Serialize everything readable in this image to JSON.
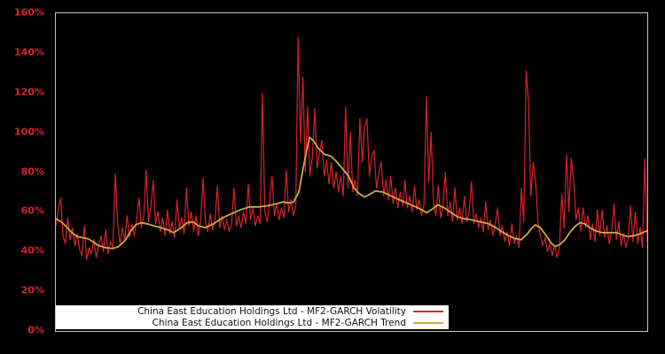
{
  "page": {
    "background": "#000000",
    "plot_border_color": "#c6c6c6"
  },
  "chart_data": {
    "type": "line",
    "title": "",
    "xlabel": "",
    "ylabel": "",
    "ylim": [
      0,
      160
    ],
    "grid": false,
    "legend_position": "bottom-left",
    "x_axis_labels_visible": false,
    "y_ticks": {
      "values": [
        0,
        20,
        40,
        60,
        80,
        100,
        120,
        140,
        160
      ],
      "labels": [
        "0%",
        "20%",
        "40%",
        "60%",
        "80%",
        "100%",
        "120%",
        "140%",
        "160%"
      ]
    },
    "colors": {
      "volatility": "#d8222a",
      "trend": "#ccaa3c",
      "axis_label": "#d8222a",
      "legend_bg": "#ffffff",
      "legend_text": "#111111"
    },
    "series": [
      {
        "name": "China East Education Holdings Ltd - MF2-GARCH Volatility",
        "color_key": "volatility",
        "unit": "%",
        "x_mode": "uniform",
        "values": [
          53,
          61,
          67,
          48,
          44,
          57,
          46,
          52,
          43,
          49,
          41,
          38,
          53,
          36,
          42,
          39,
          46,
          37,
          43,
          48,
          40,
          51,
          39,
          45,
          42,
          79,
          55,
          44,
          52,
          46,
          58,
          47,
          54,
          48,
          56,
          67,
          52,
          58,
          81,
          55,
          62,
          76,
          54,
          60,
          50,
          57,
          48,
          61,
          49,
          55,
          47,
          66,
          52,
          57,
          49,
          72,
          53,
          60,
          50,
          58,
          48,
          56,
          77,
          55,
          50,
          59,
          51,
          56,
          73,
          52,
          58,
          51,
          56,
          50,
          54,
          72,
          53,
          58,
          52,
          60,
          54,
          74,
          56,
          62,
          53,
          58,
          54,
          120,
          60,
          55,
          65,
          78,
          58,
          64,
          56,
          62,
          57,
          81,
          60,
          66,
          58,
          63,
          148,
          95,
          128,
          80,
          113,
          78,
          88,
          112,
          82,
          90,
          96,
          78,
          86,
          74,
          85,
          72,
          80,
          70,
          78,
          68,
          113,
          72,
          100,
          70,
          76,
          68,
          107,
          85,
          103,
          107,
          78,
          88,
          91,
          72,
          80,
          85,
          68,
          76,
          66,
          78,
          64,
          72,
          62,
          70,
          63,
          76,
          62,
          68,
          60,
          73,
          61,
          66,
          58,
          64,
          118,
          75,
          100,
          65,
          58,
          73,
          57,
          63,
          80,
          58,
          65,
          55,
          72,
          56,
          62,
          54,
          68,
          55,
          60,
          75,
          54,
          59,
          52,
          57,
          50,
          65,
          51,
          56,
          48,
          54,
          62,
          48,
          53,
          45,
          50,
          43,
          54,
          44,
          48,
          42,
          72,
          55,
          131,
          115,
          68,
          85,
          75,
          55,
          48,
          43,
          47,
          40,
          44,
          38,
          43,
          37,
          42,
          69,
          52,
          89,
          60,
          87,
          76,
          56,
          62,
          50,
          62,
          52,
          58,
          46,
          54,
          45,
          61,
          48,
          61,
          47,
          53,
          44,
          50,
          64,
          46,
          55,
          43,
          49,
          42,
          47,
          63,
          45,
          60,
          44,
          52,
          42,
          87,
          45
        ]
      },
      {
        "name": "China East Education Holdings Ltd - MF2-GARCH Trend",
        "color_key": "trend",
        "unit": "%",
        "x_mode": "pairs",
        "points": [
          [
            0.0,
            56.5
          ],
          [
            0.009,
            55
          ],
          [
            0.018,
            52.5
          ],
          [
            0.027,
            49.5
          ],
          [
            0.036,
            47.5
          ],
          [
            0.045,
            47
          ],
          [
            0.054,
            46.5
          ],
          [
            0.063,
            45
          ],
          [
            0.072,
            43
          ],
          [
            0.084,
            42
          ],
          [
            0.096,
            41.5
          ],
          [
            0.106,
            42.5
          ],
          [
            0.117,
            45.5
          ],
          [
            0.126,
            50
          ],
          [
            0.135,
            53.5
          ],
          [
            0.144,
            54.5
          ],
          [
            0.154,
            54
          ],
          [
            0.165,
            53
          ],
          [
            0.177,
            52
          ],
          [
            0.189,
            51
          ],
          [
            0.199,
            49.5
          ],
          [
            0.21,
            51.5
          ],
          [
            0.222,
            54.5
          ],
          [
            0.232,
            55
          ],
          [
            0.241,
            53
          ],
          [
            0.252,
            52
          ],
          [
            0.267,
            54
          ],
          [
            0.282,
            57
          ],
          [
            0.297,
            59
          ],
          [
            0.312,
            61
          ],
          [
            0.327,
            62.5
          ],
          [
            0.342,
            62.5
          ],
          [
            0.357,
            63
          ],
          [
            0.372,
            64
          ],
          [
            0.384,
            65
          ],
          [
            0.394,
            64.5
          ],
          [
            0.402,
            65
          ],
          [
            0.411,
            70
          ],
          [
            0.42,
            85
          ],
          [
            0.429,
            97.5
          ],
          [
            0.435,
            96
          ],
          [
            0.444,
            92
          ],
          [
            0.454,
            89
          ],
          [
            0.465,
            88
          ],
          [
            0.474,
            85.5
          ],
          [
            0.484,
            82
          ],
          [
            0.495,
            78
          ],
          [
            0.504,
            72
          ],
          [
            0.514,
            69
          ],
          [
            0.522,
            67.5
          ],
          [
            0.529,
            68.5
          ],
          [
            0.54,
            70.5
          ],
          [
            0.552,
            70
          ],
          [
            0.564,
            68.5
          ],
          [
            0.574,
            67
          ],
          [
            0.585,
            65.5
          ],
          [
            0.597,
            64
          ],
          [
            0.609,
            62.5
          ],
          [
            0.619,
            61
          ],
          [
            0.627,
            59.5
          ],
          [
            0.637,
            61.5
          ],
          [
            0.646,
            63.5
          ],
          [
            0.657,
            62
          ],
          [
            0.669,
            59.5
          ],
          [
            0.679,
            57.5
          ],
          [
            0.691,
            56.5
          ],
          [
            0.702,
            56
          ],
          [
            0.717,
            55
          ],
          [
            0.732,
            54
          ],
          [
            0.744,
            52
          ],
          [
            0.754,
            50
          ],
          [
            0.765,
            48
          ],
          [
            0.777,
            46.5
          ],
          [
            0.787,
            46
          ],
          [
            0.796,
            48.5
          ],
          [
            0.804,
            51.5
          ],
          [
            0.811,
            53.5
          ],
          [
            0.819,
            52
          ],
          [
            0.828,
            48.5
          ],
          [
            0.837,
            44.5
          ],
          [
            0.844,
            42.5
          ],
          [
            0.852,
            43.5
          ],
          [
            0.861,
            46
          ],
          [
            0.87,
            50
          ],
          [
            0.879,
            53
          ],
          [
            0.886,
            54.5
          ],
          [
            0.894,
            54
          ],
          [
            0.903,
            52
          ],
          [
            0.912,
            50.5
          ],
          [
            0.924,
            49.5
          ],
          [
            0.936,
            49.5
          ],
          [
            0.948,
            49.5
          ],
          [
            0.957,
            48.5
          ],
          [
            0.967,
            47.5
          ],
          [
            0.978,
            48
          ],
          [
            0.988,
            49
          ],
          [
            1.0,
            50.5
          ]
        ]
      }
    ]
  },
  "legend": {
    "rows": [
      {
        "bind_series": 0
      },
      {
        "bind_series": 1
      }
    ]
  }
}
